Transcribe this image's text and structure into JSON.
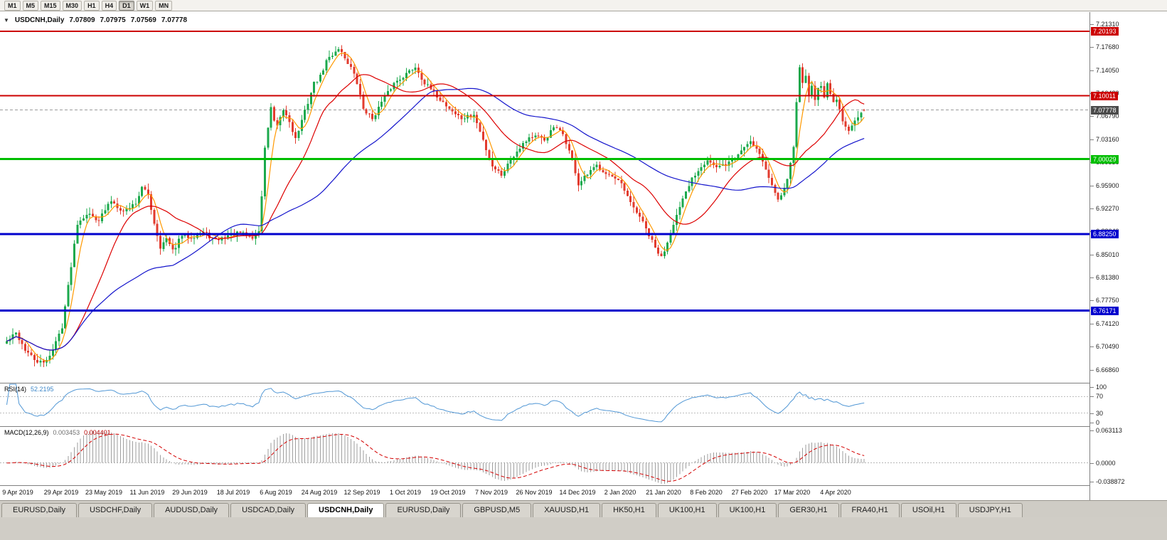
{
  "toolbar": {
    "timeframes": [
      "M1",
      "M5",
      "M15",
      "M30",
      "H1",
      "H4",
      "D1",
      "W1",
      "MN"
    ],
    "active": "D1"
  },
  "chart_header": {
    "collapse_icon": "▼",
    "symbol": "USDCNH,Daily",
    "open": "7.07809",
    "high": "7.07975",
    "low": "7.07569",
    "close": "7.07778"
  },
  "price_scale": {
    "ticks": [
      "7.21310",
      "7.17680",
      "7.14050",
      "7.10420",
      "7.06790",
      "7.03160",
      "6.99530",
      "6.95900",
      "6.92270",
      "6.88640",
      "6.85010",
      "6.81380",
      "6.77750",
      "6.74120",
      "6.70490",
      "6.66860"
    ]
  },
  "levels": [
    {
      "name": "resistance-upper",
      "price": 7.20193,
      "label": "7.20193",
      "color": "#CC0000",
      "width": 2,
      "style": "solid"
    },
    {
      "name": "resistance",
      "price": 7.10011,
      "label": "7.10011",
      "color": "#CC0000",
      "width": 2,
      "style": "solid"
    },
    {
      "name": "current-price",
      "price": 7.07778,
      "label": "7.07778",
      "color": "#4A4A4A",
      "width": 1,
      "style": "dashed"
    },
    {
      "name": "pivot-seven",
      "price": 7.00029,
      "label": "7.00029",
      "color": "#00BE00",
      "width": 3,
      "style": "solid"
    },
    {
      "name": "support",
      "price": 6.8825,
      "label": "6.88250",
      "color": "#0000CD",
      "width": 3,
      "style": "solid"
    },
    {
      "name": "support-lower",
      "price": 6.76171,
      "label": "6.76171",
      "color": "#0000CD",
      "width": 3,
      "style": "solid"
    }
  ],
  "rsi_panel": {
    "label": "RSI(14)",
    "value": "52.2195",
    "line_color": "#5197D5",
    "levels": [
      70,
      30
    ],
    "range": [
      0,
      100
    ],
    "ticks": [
      {
        "v": 100,
        "t": "100"
      },
      {
        "v": 70,
        "t": "70"
      },
      {
        "v": 30,
        "t": "30"
      },
      {
        "v": 0,
        "t": "0"
      }
    ]
  },
  "macd_panel": {
    "label": "MACD(12,26,9)",
    "main_value": "0.003453",
    "signal_value": "0.004401",
    "hist_color": "#9E9E9E",
    "signal_color": "#D40000",
    "range": [
      -0.038872,
      0.063113
    ],
    "ticks": [
      {
        "v": 0.063113,
        "t": "0.063113"
      },
      {
        "v": 0,
        "t": "0.0000"
      },
      {
        "v": -0.038872,
        "t": "-0.038872"
      }
    ]
  },
  "time_axis": {
    "first_bar": 4,
    "bar_step": 14,
    "labels": [
      "9 Apr 2019",
      "29 Apr 2019",
      "23 May 2019",
      "11 Jun 2019",
      "29 Jun 2019",
      "18 Jul 2019",
      "6 Aug 2019",
      "24 Aug 2019",
      "12 Sep 2019",
      "1 Oct 2019",
      "19 Oct 2019",
      "7 Nov 2019",
      "26 Nov 2019",
      "14 Dec 2019",
      "2 Jan 2020",
      "21 Jan 2020",
      "8 Feb 2020",
      "27 Feb 2020",
      "17 Mar 2020",
      "4 Apr 2020"
    ]
  },
  "tabs": {
    "active_index": 4,
    "items": [
      "EURUSD,Daily",
      "USDCHF,Daily",
      "AUDUSD,Daily",
      "USDCAD,Daily",
      "USDCNH,Daily",
      "EURUSD,Daily",
      "GBPUSD,M5",
      "XAUUSD,H1",
      "HK50,H1",
      "UK100,H1",
      "UK100,H1",
      "GER30,H1",
      "FRA40,H1",
      "USOil,H1",
      "USDJPY,H1"
    ]
  },
  "chart_data": {
    "type": "candlestick",
    "symbol": "USDCNH",
    "timeframe": "Daily",
    "num_bars": 280,
    "ylim": [
      6.648,
      7.232
    ],
    "seed": 42,
    "noise": 0.0035,
    "wick": 0.01,
    "up_color": "#1BA94C",
    "down_color": "#E23B2E",
    "moving_averages": [
      {
        "period": 5,
        "color": "#FF9900"
      },
      {
        "period": 20,
        "color": "#DD0000"
      },
      {
        "period": 55,
        "color": "#1414CC"
      }
    ],
    "indicators": {
      "rsi_period": 14,
      "macd": [
        12,
        26,
        9
      ]
    },
    "ohlc_current": {
      "open": 7.07809,
      "high": 7.07975,
      "low": 7.07569,
      "close": 7.07778
    },
    "close_anchors": [
      [
        0,
        6.713
      ],
      [
        3,
        6.726
      ],
      [
        6,
        6.7
      ],
      [
        9,
        6.684
      ],
      [
        12,
        6.678
      ],
      [
        15,
        6.7
      ],
      [
        18,
        6.737
      ],
      [
        20,
        6.8
      ],
      [
        23,
        6.9
      ],
      [
        26,
        6.915
      ],
      [
        30,
        6.905
      ],
      [
        34,
        6.935
      ],
      [
        38,
        6.918
      ],
      [
        42,
        6.932
      ],
      [
        44,
        6.955
      ],
      [
        46,
        6.945
      ],
      [
        48,
        6.9
      ],
      [
        50,
        6.862
      ],
      [
        52,
        6.875
      ],
      [
        54,
        6.855
      ],
      [
        57,
        6.88
      ],
      [
        60,
        6.878
      ],
      [
        64,
        6.885
      ],
      [
        68,
        6.872
      ],
      [
        72,
        6.88
      ],
      [
        76,
        6.884
      ],
      [
        80,
        6.876
      ],
      [
        82,
        6.888
      ],
      [
        83,
        6.94
      ],
      [
        84,
        7.02
      ],
      [
        85,
        7.05
      ],
      [
        86,
        7.08
      ],
      [
        87,
        7.06
      ],
      [
        88,
        7.05
      ],
      [
        90,
        7.078
      ],
      [
        92,
        7.06
      ],
      [
        94,
        7.032
      ],
      [
        96,
        7.06
      ],
      [
        98,
        7.09
      ],
      [
        100,
        7.12
      ],
      [
        102,
        7.13
      ],
      [
        104,
        7.155
      ],
      [
        106,
        7.165
      ],
      [
        108,
        7.176
      ],
      [
        110,
        7.16
      ],
      [
        112,
        7.145
      ],
      [
        114,
        7.12
      ],
      [
        116,
        7.08
      ],
      [
        119,
        7.064
      ],
      [
        122,
        7.09
      ],
      [
        126,
        7.12
      ],
      [
        130,
        7.135
      ],
      [
        133,
        7.146
      ],
      [
        136,
        7.12
      ],
      [
        140,
        7.1
      ],
      [
        144,
        7.08
      ],
      [
        148,
        7.064
      ],
      [
        152,
        7.07
      ],
      [
        155,
        7.03
      ],
      [
        158,
        6.99
      ],
      [
        161,
        6.976
      ],
      [
        164,
        7.0
      ],
      [
        167,
        7.02
      ],
      [
        170,
        7.035
      ],
      [
        172,
        7.036
      ],
      [
        175,
        7.03
      ],
      [
        178,
        7.05
      ],
      [
        181,
        7.04
      ],
      [
        184,
        7.0
      ],
      [
        186,
        6.96
      ],
      [
        189,
        6.976
      ],
      [
        192,
        6.99
      ],
      [
        196,
        6.976
      ],
      [
        200,
        6.96
      ],
      [
        203,
        6.93
      ],
      [
        206,
        6.91
      ],
      [
        209,
        6.88
      ],
      [
        211,
        6.86
      ],
      [
        213,
        6.845
      ],
      [
        215,
        6.87
      ],
      [
        217,
        6.9
      ],
      [
        220,
        6.935
      ],
      [
        223,
        6.97
      ],
      [
        226,
        6.99
      ],
      [
        228,
        7.0
      ],
      [
        231,
        6.986
      ],
      [
        234,
        6.992
      ],
      [
        237,
        7.002
      ],
      [
        240,
        7.02
      ],
      [
        242,
        7.03
      ],
      [
        245,
        7.01
      ],
      [
        248,
        6.97
      ],
      [
        251,
        6.94
      ],
      [
        253,
        6.952
      ],
      [
        255,
        6.992
      ],
      [
        256,
        7.02
      ],
      [
        257,
        7.09
      ],
      [
        258,
        7.148
      ],
      [
        259,
        7.118
      ],
      [
        260,
        7.135
      ],
      [
        261,
        7.1
      ],
      [
        262,
        7.118
      ],
      [
        263,
        7.092
      ],
      [
        264,
        7.112
      ],
      [
        265,
        7.118
      ],
      [
        266,
        7.094
      ],
      [
        267,
        7.118
      ],
      [
        268,
        7.102
      ],
      [
        269,
        7.088
      ],
      [
        270,
        7.094
      ],
      [
        272,
        7.06
      ],
      [
        274,
        7.048
      ],
      [
        276,
        7.064
      ],
      [
        278,
        7.072
      ],
      [
        279,
        7.07778
      ]
    ]
  }
}
